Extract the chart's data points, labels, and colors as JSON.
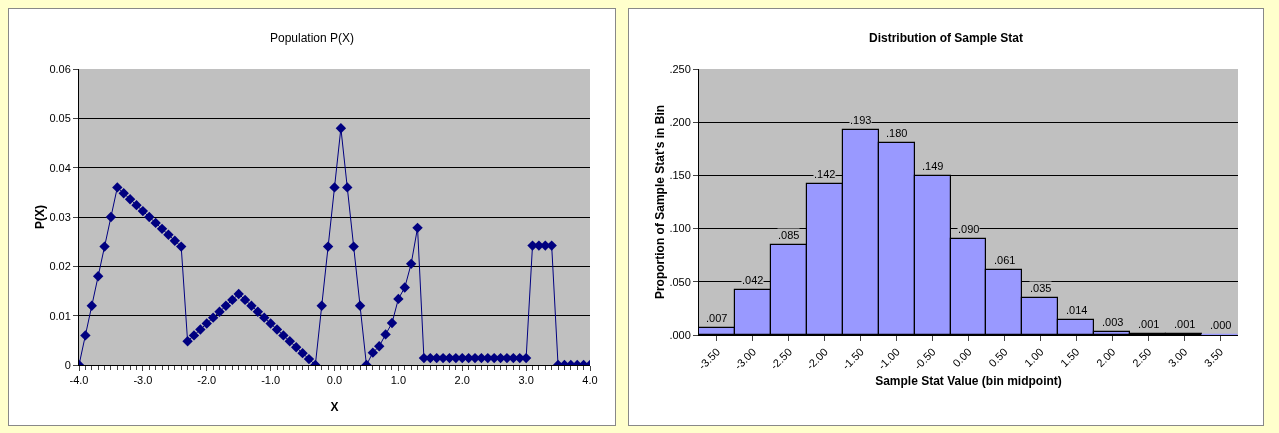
{
  "chart_data": [
    {
      "type": "line",
      "title": "Population P(X)",
      "xlabel": "X",
      "ylabel": "P(X)",
      "marker": "diamond",
      "grid": "y",
      "x": [
        -4.0,
        -3.9,
        -3.8,
        -3.7,
        -3.6,
        -3.5,
        -3.4,
        -3.3,
        -3.2,
        -3.1,
        -3.0,
        -2.9,
        -2.8,
        -2.7,
        -2.6,
        -2.5,
        -2.4,
        -2.3,
        -2.2,
        -2.1,
        -2.0,
        -1.9,
        -1.8,
        -1.7,
        -1.6,
        -1.5,
        -1.4,
        -1.3,
        -1.2,
        -1.1,
        -1.0,
        -0.9,
        -0.8,
        -0.7,
        -0.6,
        -0.5,
        -0.4,
        -0.3,
        -0.2,
        -0.1,
        0.0,
        0.1,
        0.2,
        0.3,
        0.4,
        0.5,
        0.6,
        0.7,
        0.8,
        0.9,
        1.0,
        1.1,
        1.2,
        1.3,
        1.4,
        1.5,
        1.6,
        1.7,
        1.8,
        1.9,
        2.0,
        2.1,
        2.2,
        2.3,
        2.4,
        2.5,
        2.6,
        2.7,
        2.8,
        2.9,
        3.0,
        3.1,
        3.2,
        3.3,
        3.4,
        3.5,
        3.6,
        3.7,
        3.8,
        3.9,
        4.0
      ],
      "series": [
        {
          "color": "#000080",
          "values": [
            0,
            0.006,
            0.012,
            0.018,
            0.024,
            0.03,
            0.036,
            0.0348,
            0.0336,
            0.0324,
            0.0312,
            0.03,
            0.0288,
            0.0276,
            0.0264,
            0.0252,
            0.024,
            0.0048,
            0.006,
            0.0072,
            0.0084,
            0.0096,
            0.0108,
            0.012,
            0.0132,
            0.0144,
            0.0132,
            0.012,
            0.0108,
            0.0096,
            0.0084,
            0.0072,
            0.006,
            0.0048,
            0.0036,
            0.0024,
            0.0012,
            0,
            0.012,
            0.024,
            0.036,
            0.048,
            0.036,
            0.024,
            0.012,
            0,
            0.0025,
            0.0038,
            0.0062,
            0.0085,
            0.0134,
            0.0157,
            0.0205,
            0.0278,
            0.0014,
            0.0014,
            0.0014,
            0.0014,
            0.0014,
            0.0014,
            0.0014,
            0.0014,
            0.0014,
            0.0014,
            0.0014,
            0.0014,
            0.0014,
            0.0014,
            0.0014,
            0.0014,
            0.0014,
            0.0242,
            0.0242,
            0.0242,
            0.0242,
            0,
            0,
            0,
            0,
            0,
            0
          ]
        }
      ],
      "xlim": [
        -4,
        4
      ],
      "xticks": [
        {
          "value": -4,
          "label": "-4.0"
        },
        {
          "value": -3,
          "label": "-3.0"
        },
        {
          "value": -2,
          "label": "-2.0"
        },
        {
          "value": -1,
          "label": "-1.0"
        },
        {
          "value": 0,
          "label": "0.0"
        },
        {
          "value": 1,
          "label": "1.0"
        },
        {
          "value": 2,
          "label": "2.0"
        },
        {
          "value": 3,
          "label": "3.0"
        },
        {
          "value": 4,
          "label": "4.0"
        }
      ],
      "ylim": [
        0,
        0.06
      ],
      "yticks": [
        0,
        0.01,
        0.02,
        0.03,
        0.04,
        0.05,
        0.06
      ]
    },
    {
      "type": "bar",
      "title": "Distribution of Sample Stat",
      "xlabel": "Sample Stat Value (bin midpoint)",
      "ylabel": "Proportion of Sample Stat's in Bin",
      "grid": "y",
      "categories": [
        "-3.50",
        "-3.00",
        "-2.50",
        "-2.00",
        "-1.50",
        "-1.00",
        "-0.50",
        "0.00",
        "0.50",
        "1.00",
        "1.50",
        "2.00",
        "2.50",
        "3.00",
        "3.50"
      ],
      "series": [
        {
          "color": "#9999ff",
          "values": [
            0.007,
            0.042,
            0.085,
            0.142,
            0.193,
            0.18,
            0.149,
            0.09,
            0.061,
            0.035,
            0.014,
            0.003,
            0.001,
            0.001,
            0.0
          ],
          "value_labels": [
            ".007",
            ".042",
            ".085",
            ".142",
            ".193",
            ".180",
            ".149",
            ".090",
            ".061",
            ".035",
            ".014",
            ".003",
            ".001",
            ".001",
            ".000"
          ]
        }
      ],
      "ylim": [
        0,
        0.25
      ],
      "yticks": [
        {
          "value": 0,
          "label": ".000"
        },
        {
          "value": 0.05,
          "label": ".050"
        },
        {
          "value": 0.1,
          "label": ".100"
        },
        {
          "value": 0.15,
          "label": ".150"
        },
        {
          "value": 0.2,
          "label": ".200"
        },
        {
          "value": 0.25,
          "label": ".250"
        }
      ]
    }
  ]
}
